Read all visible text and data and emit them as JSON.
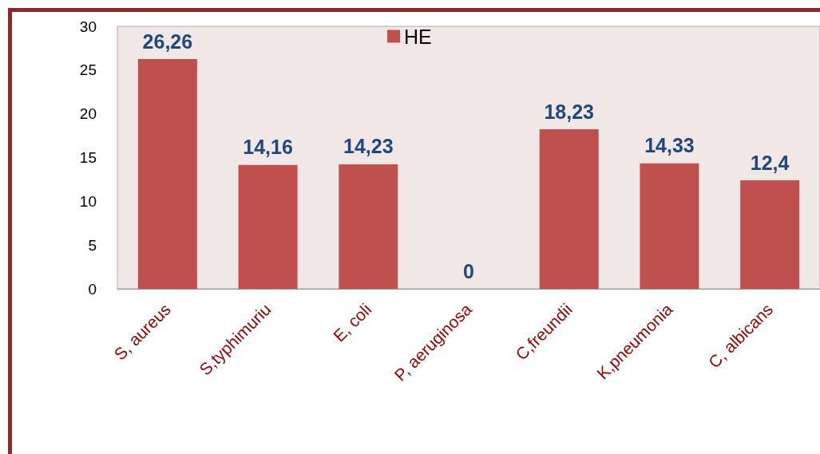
{
  "chart_data": {
    "type": "bar",
    "categories": [
      "S, aureus",
      "S,typhimuriu",
      "E, coli",
      "P, aeruginosa",
      "C,freundii",
      "K,pneumonia",
      "C, albicans"
    ],
    "series": [
      {
        "name": "HE",
        "color": "#c0504d",
        "values": [
          26.26,
          14.16,
          14.23,
          0,
          18.23,
          14.33,
          12.4
        ],
        "value_labels": [
          "26,26",
          "14,16",
          "14,23",
          "0",
          "18,23",
          "14,33",
          "12,4"
        ]
      }
    ],
    "ylim": [
      0,
      30
    ],
    "yticks": [
      0,
      5,
      10,
      15,
      20,
      25,
      30
    ],
    "grid": false,
    "legend": "top"
  }
}
